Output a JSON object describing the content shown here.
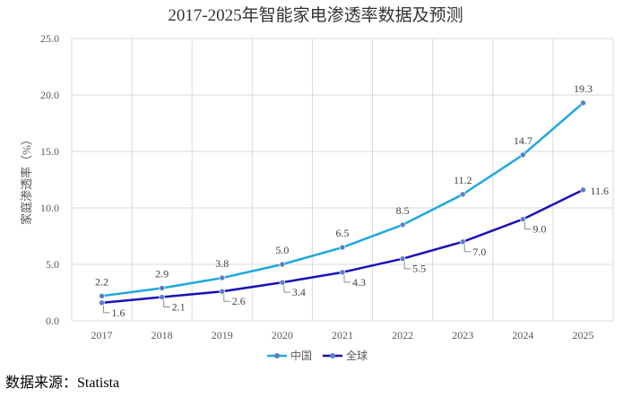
{
  "chart_data": {
    "type": "line",
    "title": "2017-2025年智能家电渗透率数据及预测",
    "ylabel": "家庭渗透率（%）",
    "xlabel": "",
    "ylim": [
      0,
      25
    ],
    "y_ticks": [
      "0.0",
      "5.0",
      "10.0",
      "15.0",
      "20.0",
      "25.0"
    ],
    "categories": [
      "2017",
      "2018",
      "2019",
      "2020",
      "2021",
      "2022",
      "2023",
      "2024",
      "2025"
    ],
    "series": [
      {
        "name": "中国",
        "color": "#1ea8e0",
        "values": [
          2.2,
          2.9,
          3.8,
          5.0,
          6.5,
          8.5,
          11.2,
          14.7,
          19.3
        ],
        "labels": [
          "2.2",
          "2.9",
          "3.8",
          "5.0",
          "6.5",
          "8.5",
          "11.2",
          "14.7",
          "19.3"
        ]
      },
      {
        "name": "全球",
        "color": "#1a10b8",
        "values": [
          1.6,
          2.1,
          2.6,
          3.4,
          4.3,
          5.5,
          7.0,
          9.0,
          11.6
        ],
        "labels": [
          "1.6",
          "2.1",
          "2.6",
          "3.4",
          "4.3",
          "5.5",
          "7.0",
          "9.0",
          "11.6"
        ]
      }
    ],
    "grid": true,
    "legend": "bottom-center"
  },
  "source_text": "数据来源：Statista"
}
